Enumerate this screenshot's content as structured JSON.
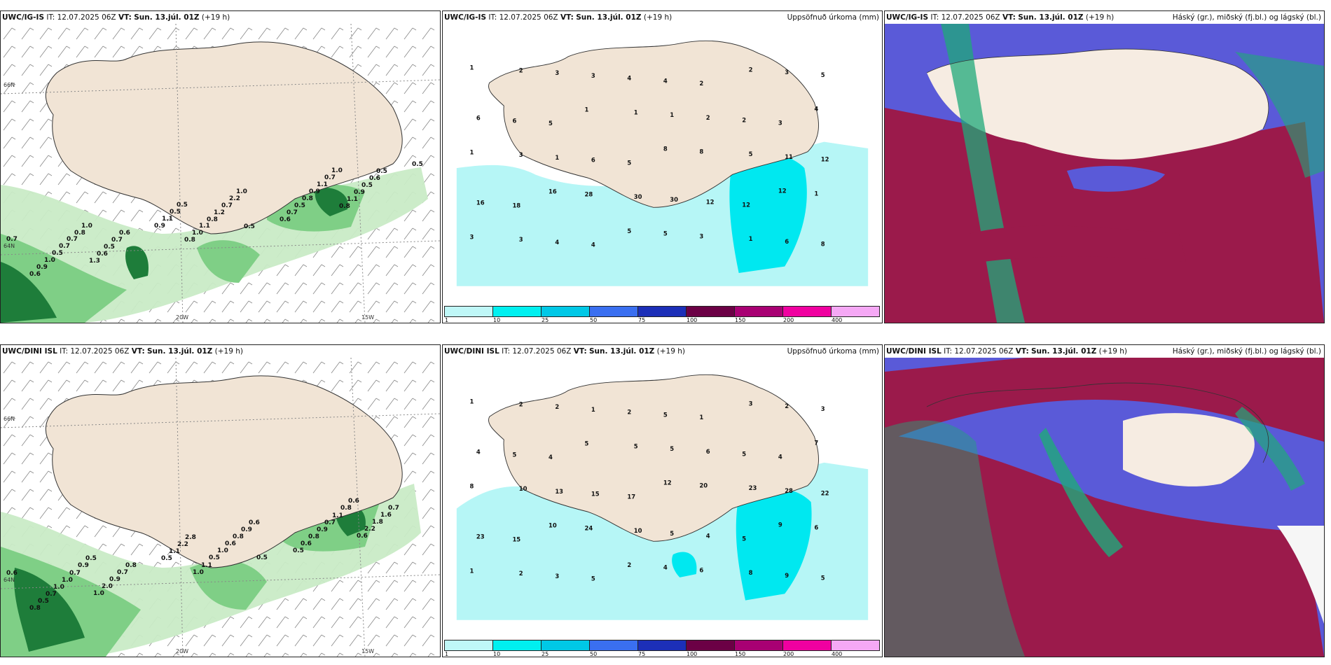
{
  "colors": {
    "land": "#f1e4d5",
    "precip_light": "#b6f6f6",
    "precip_mid": "#00e8f0",
    "cloud_high": "#5a5ad8",
    "cloud_mid": "#9b1a4b",
    "cloud_low": "#1fa97a",
    "wind_green_light": "#c8ebc8",
    "wind_green_dark": "#0d5e2a"
  },
  "precip_legend": {
    "ticks": [
      "1",
      "10",
      "25",
      "50",
      "75",
      "100",
      "150",
      "200",
      "400"
    ],
    "colors": [
      "#bff7f7",
      "#00f0f0",
      "#00c8e6",
      "#3a6ff0",
      "#1c2fb8",
      "#6b0045",
      "#a80073",
      "#f000a0",
      "#f5a8f5"
    ]
  },
  "axis_labels": {
    "lat_66": "66N",
    "lat_64": "64N",
    "lon_20": "20W",
    "lon_15": "15W"
  },
  "rows": [
    {
      "model": "UWC/IG-IS",
      "it_label": "IT:",
      "it_value": "12.07.2025 06Z",
      "vt_label": "VT:",
      "vt_value": "Sun. 13.júl. 01Z",
      "lead": "(+19 h)",
      "precip_title": "Uppsöfnuð úrkoma (mm)",
      "cloud_title": "Háský (gr.), miðský (fj.bl.) og lágský (bl.)",
      "wind_labels": [
        "0.7",
        "0.6",
        "0.9",
        "1.0",
        "0.5",
        "0.7",
        "0.7",
        "0.8",
        "1.0",
        "1.3",
        "0.6",
        "0.5",
        "0.7",
        "0.6",
        "0.9",
        "1.1",
        "0.5",
        "0.5",
        "0.8",
        "1.0",
        "1.1",
        "0.8",
        "1.2",
        "0.7",
        "2.2",
        "1.0",
        "0.5",
        "0.6",
        "0.7",
        "0.5",
        "0.8",
        "0.9",
        "1.1",
        "0.7",
        "1.0",
        "0.8",
        "1.1",
        "0.9",
        "0.5",
        "0.6",
        "0.5",
        "0.5"
      ],
      "precip_labels": [
        "1",
        "2",
        "3",
        "3",
        "4",
        "4",
        "2",
        "2",
        "3",
        "5",
        "6",
        "6",
        "5",
        "1",
        "1",
        "1",
        "2",
        "2",
        "3",
        "4",
        "1",
        "3",
        "1",
        "6",
        "5",
        "8",
        "8",
        "5",
        "11",
        "12",
        "16",
        "18",
        "16",
        "28",
        "30",
        "30",
        "12",
        "12",
        "12",
        "1",
        "3",
        "3",
        "4",
        "4",
        "5",
        "5",
        "3",
        "1",
        "6",
        "8"
      ]
    },
    {
      "model": "UWC/DINI ISL",
      "it_label": "IT:",
      "it_value": "12.07.2025 06Z",
      "vt_label": "VT:",
      "vt_value": "Sun. 13.júl. 01Z",
      "lead": "(+19 h)",
      "precip_title": "Uppsöfnuð úrkoma (mm)",
      "cloud_title": "Háský (gr.), miðský (fj.bl.) og lágský (bl.)",
      "wind_labels": [
        "0.6",
        "0.8",
        "0.5",
        "0.7",
        "1.0",
        "1.0",
        "0.7",
        "0.9",
        "0.5",
        "1.0",
        "2.0",
        "0.9",
        "0.7",
        "0.8",
        "0.5",
        "1.1",
        "2.2",
        "2.8",
        "1.0",
        "1.1",
        "0.5",
        "1.0",
        "0.6",
        "0.8",
        "0.9",
        "0.6",
        "0.5",
        "0.5",
        "0.6",
        "0.8",
        "0.9",
        "0.7",
        "1.1",
        "0.8",
        "0.6",
        "0.6",
        "2.2",
        "1.8",
        "1.6",
        "0.7"
      ],
      "precip_labels": [
        "1",
        "2",
        "2",
        "1",
        "2",
        "5",
        "1",
        "3",
        "2",
        "3",
        "4",
        "5",
        "4",
        "5",
        "5",
        "5",
        "6",
        "5",
        "4",
        "7",
        "8",
        "10",
        "13",
        "15",
        "17",
        "12",
        "20",
        "23",
        "28",
        "22",
        "23",
        "15",
        "10",
        "24",
        "10",
        "5",
        "4",
        "5",
        "9",
        "6",
        "1",
        "2",
        "3",
        "5",
        "2",
        "4",
        "6",
        "8",
        "9",
        "5"
      ]
    }
  ]
}
